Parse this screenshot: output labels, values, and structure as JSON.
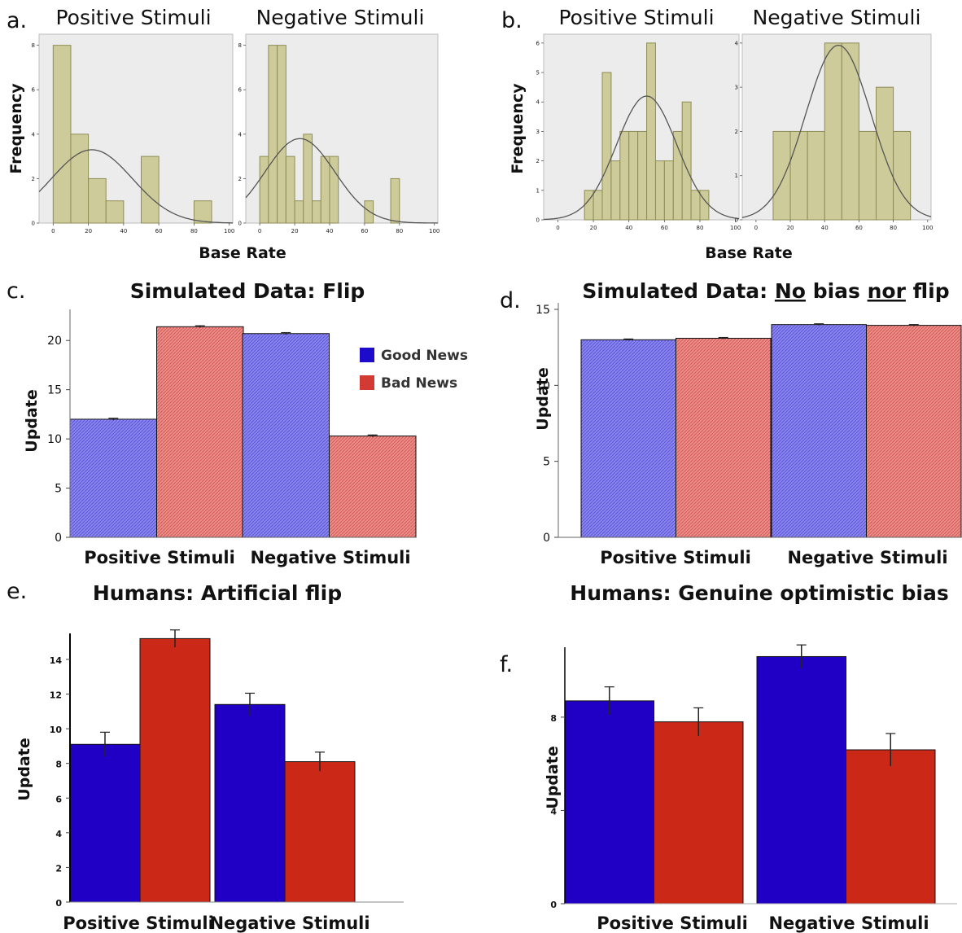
{
  "colors": {
    "hist_fill": "#cdcb99",
    "hist_stroke": "#8f8c55",
    "hist_bg": "#ececec",
    "good_news_hatch": "#8a86ee",
    "bad_news_hatch": "#ea8c88",
    "good_news_solid": "#2000c4",
    "bad_news_solid": "#cc2818"
  },
  "panel_letters": {
    "a": "a.",
    "b": "b.",
    "c": "c.",
    "d": "d.",
    "e": "e.",
    "f": "f."
  },
  "chart_data": [
    {
      "id": "a",
      "type": "histogram",
      "ylabel": "Frequency",
      "xlabel": "Base Rate",
      "panels": [
        {
          "title": "Positive Stimuli",
          "xlim": [
            -8,
            102
          ],
          "ylim": [
            0,
            8.5
          ],
          "x_ticks": [
            0,
            20,
            40,
            60,
            80,
            100
          ],
          "y_ticks": [
            0,
            2,
            4,
            6,
            8
          ],
          "bins": [
            [
              0,
              10,
              8
            ],
            [
              10,
              20,
              4
            ],
            [
              20,
              30,
              2
            ],
            [
              30,
              40,
              1
            ],
            [
              50,
              60,
              3
            ],
            [
              80,
              90,
              1
            ]
          ],
          "curve": {
            "mean": 22,
            "sd": 23,
            "peak": 3.3
          }
        },
        {
          "title": "Negative Stimuli",
          "xlim": [
            -8,
            102
          ],
          "ylim": [
            0,
            8.5
          ],
          "x_ticks": [
            0,
            20,
            40,
            60,
            80,
            100
          ],
          "y_ticks": [
            0,
            2,
            4,
            6,
            8
          ],
          "bins": [
            [
              0,
              5,
              3
            ],
            [
              5,
              10,
              8
            ],
            [
              10,
              15,
              8
            ],
            [
              15,
              20,
              3
            ],
            [
              20,
              25,
              1
            ],
            [
              25,
              30,
              4
            ],
            [
              30,
              35,
              1
            ],
            [
              35,
              40,
              3
            ],
            [
              40,
              45,
              3
            ],
            [
              60,
              65,
              1
            ],
            [
              75,
              80,
              2
            ]
          ],
          "curve": {
            "mean": 23,
            "sd": 20,
            "peak": 3.8
          }
        }
      ]
    },
    {
      "id": "b",
      "type": "histogram",
      "ylabel": "Frequency",
      "xlabel": "Base Rate",
      "panels": [
        {
          "title": "Positive Stimuli",
          "xlim": [
            -8,
            102
          ],
          "ylim": [
            0,
            6.3
          ],
          "x_ticks": [
            0,
            20,
            40,
            60,
            80,
            100
          ],
          "y_ticks": [
            0,
            1,
            2,
            3,
            4,
            5,
            6
          ],
          "bins": [
            [
              15,
              20,
              1
            ],
            [
              20,
              25,
              1
            ],
            [
              25,
              30,
              5
            ],
            [
              30,
              35,
              2
            ],
            [
              35,
              40,
              3
            ],
            [
              40,
              45,
              3
            ],
            [
              45,
              50,
              3
            ],
            [
              50,
              55,
              6
            ],
            [
              55,
              60,
              2
            ],
            [
              60,
              65,
              2
            ],
            [
              65,
              70,
              3
            ],
            [
              70,
              75,
              4
            ],
            [
              75,
              80,
              1
            ],
            [
              80,
              85,
              1
            ]
          ],
          "curve": {
            "mean": 50,
            "sd": 17,
            "peak": 4.2
          }
        },
        {
          "title": "Negative Stimuli",
          "xlim": [
            -8,
            102
          ],
          "ylim": [
            0,
            4.2
          ],
          "x_ticks": [
            0,
            20,
            40,
            60,
            80,
            100
          ],
          "y_ticks": [
            0,
            1,
            2,
            3,
            4
          ],
          "bins": [
            [
              10,
              20,
              2
            ],
            [
              20,
              30,
              2
            ],
            [
              30,
              40,
              2
            ],
            [
              40,
              50,
              4
            ],
            [
              50,
              60,
              4
            ],
            [
              60,
              70,
              2
            ],
            [
              70,
              80,
              3
            ],
            [
              80,
              90,
              2
            ]
          ],
          "curve": {
            "mean": 48,
            "sd": 19,
            "peak": 3.95
          }
        }
      ]
    },
    {
      "id": "c",
      "type": "bar",
      "title": "Simulated Data: Flip",
      "ylabel": "Update",
      "categories": [
        "Positive Stimuli",
        "Negative Stimuli"
      ],
      "ylim": [
        0,
        22.5
      ],
      "y_ticks": [
        0,
        5,
        10,
        15,
        20
      ],
      "style": "hatched",
      "series": [
        {
          "name": "Good News",
          "values": [
            12.0,
            20.7
          ],
          "err": [
            0.1,
            0.1
          ]
        },
        {
          "name": "Bad News",
          "values": [
            21.4,
            10.3
          ],
          "err": [
            0.1,
            0.1
          ]
        }
      ],
      "legend_position": "top-right"
    },
    {
      "id": "d",
      "type": "bar",
      "title_parts": [
        "Simulated Data: ",
        "No",
        " bias ",
        "nor",
        " flip"
      ],
      "ylabel": "Update",
      "categories": [
        "Positive Stimuli",
        "Negative Stimuli"
      ],
      "ylim": [
        0,
        15
      ],
      "y_ticks": [
        0,
        5,
        10,
        15
      ],
      "style": "hatched",
      "series": [
        {
          "name": "Good News",
          "values": [
            13.0,
            14.0
          ],
          "err": [
            0.05,
            0.05
          ]
        },
        {
          "name": "Bad News",
          "values": [
            13.1,
            13.95
          ],
          "err": [
            0.05,
            0.05
          ]
        }
      ]
    },
    {
      "id": "e",
      "type": "bar",
      "title": "Humans: Artificial flip",
      "ylabel": "Update",
      "categories": [
        "Positive Stimuli",
        "Negative Stimuli"
      ],
      "ylim": [
        0,
        15.5
      ],
      "y_ticks": [
        0,
        2,
        4,
        6,
        8,
        10,
        12,
        14
      ],
      "style": "solid",
      "series": [
        {
          "name": "Good News",
          "values": [
            9.1,
            11.4
          ],
          "err": [
            0.7,
            0.65
          ]
        },
        {
          "name": "Bad News",
          "values": [
            15.2,
            8.1
          ],
          "err": [
            0.5,
            0.55
          ]
        }
      ]
    },
    {
      "id": "f",
      "type": "bar",
      "title": "Humans: Genuine optimistic bias",
      "ylabel": "Update",
      "categories": [
        "Positive Stimuli",
        "Negative Stimuli"
      ],
      "ylim": [
        0,
        11
      ],
      "y_ticks": [
        0,
        4,
        8
      ],
      "style": "solid",
      "series": [
        {
          "name": "Good News",
          "values": [
            8.7,
            10.6
          ],
          "err": [
            0.6,
            0.5
          ]
        },
        {
          "name": "Bad News",
          "values": [
            7.8,
            6.6
          ],
          "err": [
            0.6,
            0.7
          ]
        }
      ]
    }
  ]
}
